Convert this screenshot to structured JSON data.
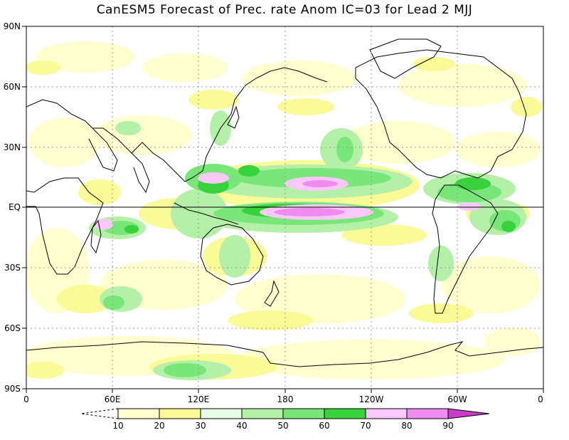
{
  "title": "CanESM5 Forecast of Prec. rate Anom IC=03 for Lead 2 MJJ",
  "latitude_labels": [
    "90N",
    "60N",
    "30N",
    "EQ",
    "30S",
    "60S",
    "90S"
  ],
  "longitude_labels": [
    "0",
    "60E",
    "120E",
    "180",
    "120W",
    "60W",
    "0"
  ],
  "colorbar": {
    "labels": [
      "10",
      "20",
      "30",
      "40",
      "50",
      "60",
      "70",
      "80",
      "90"
    ],
    "colors": [
      "#ffffd0",
      "#fafa96",
      "#e6ffe6",
      "#b4f0a8",
      "#78e678",
      "#37d23c",
      "#fac8fa",
      "#f08cf0",
      "#c83cc8"
    ],
    "extends": "both"
  },
  "colors": {
    "coastline": "#000000",
    "grid": "#9a9a9a",
    "frame": "#000000"
  }
}
